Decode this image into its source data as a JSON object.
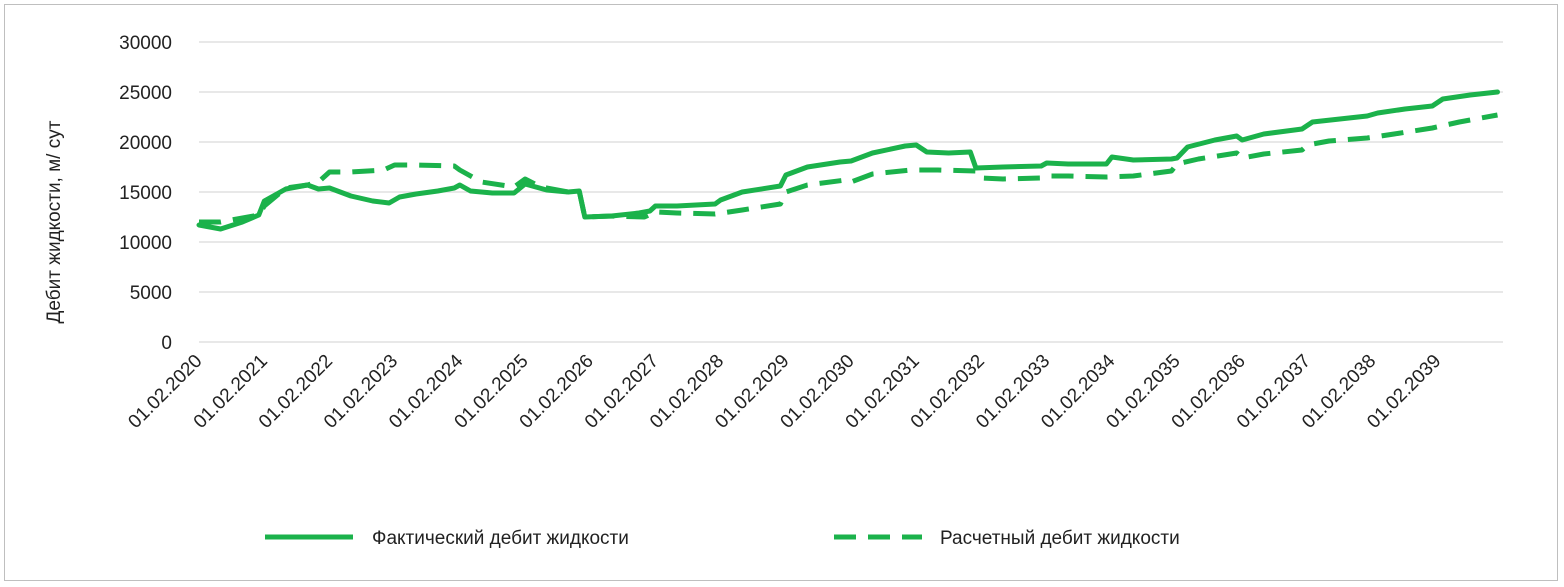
{
  "chart_data": {
    "type": "line",
    "title": "",
    "xlabel": "",
    "ylabel": "Дебит жидкости, м/ сут",
    "ylim": [
      0,
      30000
    ],
    "yticks": [
      0,
      5000,
      10000,
      15000,
      20000,
      25000,
      30000
    ],
    "xlim": [
      "01.02.2020",
      "01.02.2040"
    ],
    "xticks": [
      "01.02.2020",
      "01.02.2021",
      "01.02.2022",
      "01.02.2023",
      "01.02.2024",
      "01.02.2025",
      "01.02.2026",
      "01.02.2027",
      "01.02.2028",
      "01.02.2029",
      "01.02.2030",
      "01.02.2031",
      "01.02.2032",
      "01.02.2033",
      "01.02.2034",
      "01.02.2035",
      "01.02.2036",
      "01.02.2037",
      "01.02.2038",
      "01.02.2039"
    ],
    "grid": true,
    "legend_position": "bottom",
    "series": [
      {
        "name": "Фактический дебит жидкости",
        "style": "solid",
        "color": "#1bb24b",
        "points": [
          [
            "01.02.2020",
            11700
          ],
          [
            "01.06.2020",
            11300
          ],
          [
            "01.10.2020",
            12000
          ],
          [
            "01.01.2021",
            12700
          ],
          [
            "01.02.2021",
            14100
          ],
          [
            "01.06.2021",
            15300
          ],
          [
            "01.10.2021",
            15700
          ],
          [
            "01.12.2021",
            15300
          ],
          [
            "01.02.2022",
            15400
          ],
          [
            "01.06.2022",
            14600
          ],
          [
            "01.10.2022",
            14100
          ],
          [
            "01.01.2023",
            13900
          ],
          [
            "01.03.2023",
            14500
          ],
          [
            "01.06.2023",
            14800
          ],
          [
            "01.10.2023",
            15100
          ],
          [
            "01.01.2024",
            15400
          ],
          [
            "01.02.2024",
            15700
          ],
          [
            "01.04.2024",
            15100
          ],
          [
            "01.08.2024",
            14900
          ],
          [
            "01.12.2024",
            14900
          ],
          [
            "01.02.2025",
            15800
          ],
          [
            "01.06.2025",
            15200
          ],
          [
            "01.10.2025",
            15000
          ],
          [
            "01.12.2025",
            15100
          ],
          [
            "01.01.2026",
            12500
          ],
          [
            "01.06.2026",
            12600
          ],
          [
            "01.11.2026",
            12900
          ],
          [
            "01.01.2027",
            13100
          ],
          [
            "01.02.2027",
            13600
          ],
          [
            "01.06.2027",
            13600
          ],
          [
            "01.01.2028",
            13800
          ],
          [
            "01.02.2028",
            14200
          ],
          [
            "01.06.2028",
            15000
          ],
          [
            "01.01.2029",
            15600
          ],
          [
            "01.02.2029",
            16700
          ],
          [
            "01.06.2029",
            17500
          ],
          [
            "01.12.2029",
            18000
          ],
          [
            "01.02.2030",
            18100
          ],
          [
            "01.06.2030",
            18900
          ],
          [
            "01.12.2030",
            19600
          ],
          [
            "01.02.2031",
            19700
          ],
          [
            "01.04.2031",
            19000
          ],
          [
            "01.08.2031",
            18900
          ],
          [
            "01.12.2031",
            19000
          ],
          [
            "01.01.2032",
            17400
          ],
          [
            "01.06.2032",
            17500
          ],
          [
            "01.01.2033",
            17600
          ],
          [
            "01.02.2033",
            17900
          ],
          [
            "01.06.2033",
            17800
          ],
          [
            "01.01.2034",
            17800
          ],
          [
            "01.02.2034",
            18500
          ],
          [
            "01.06.2034",
            18200
          ],
          [
            "01.01.2035",
            18300
          ],
          [
            "01.02.2035",
            18400
          ],
          [
            "01.04.2035",
            19500
          ],
          [
            "01.09.2035",
            20200
          ],
          [
            "01.01.2036",
            20600
          ],
          [
            "01.02.2036",
            20200
          ],
          [
            "01.06.2036",
            20800
          ],
          [
            "01.01.2037",
            21300
          ],
          [
            "01.03.2037",
            22000
          ],
          [
            "01.08.2037",
            22300
          ],
          [
            "01.01.2038",
            22600
          ],
          [
            "01.03.2038",
            22900
          ],
          [
            "01.08.2038",
            23300
          ],
          [
            "01.01.2039",
            23600
          ],
          [
            "01.03.2039",
            24300
          ],
          [
            "01.08.2039",
            24700
          ],
          [
            "01.01.2040",
            25000
          ]
        ]
      },
      {
        "name": "Расчетный дебит жидкости",
        "style": "dashed",
        "color": "#1bb24b",
        "points": [
          [
            "01.02.2020",
            12000
          ],
          [
            "01.06.2020",
            12000
          ],
          [
            "01.09.2020",
            12300
          ],
          [
            "01.01.2021",
            12700
          ],
          [
            "01.02.2021",
            13600
          ],
          [
            "01.06.2021",
            15400
          ],
          [
            "01.10.2021",
            15700
          ],
          [
            "01.12.2021",
            16000
          ],
          [
            "01.02.2022",
            17000
          ],
          [
            "01.06.2022",
            17000
          ],
          [
            "01.12.2022",
            17200
          ],
          [
            "01.02.2023",
            17700
          ],
          [
            "01.06.2023",
            17700
          ],
          [
            "01.01.2024",
            17600
          ],
          [
            "01.02.2024",
            17200
          ],
          [
            "01.06.2024",
            16000
          ],
          [
            "01.12.2024",
            15500
          ],
          [
            "01.02.2025",
            16300
          ],
          [
            "01.05.2025",
            15500
          ],
          [
            "01.10.2025",
            15000
          ],
          [
            "01.12.2025",
            15100
          ],
          [
            "01.01.2026",
            12500
          ],
          [
            "01.06.2026",
            12600
          ],
          [
            "01.12.2026",
            12500
          ],
          [
            "01.02.2027",
            13000
          ],
          [
            "01.06.2027",
            12900
          ],
          [
            "01.01.2028",
            12800
          ],
          [
            "01.06.2028",
            13200
          ],
          [
            "01.01.2029",
            13800
          ],
          [
            "01.02.2029",
            15000
          ],
          [
            "01.06.2029",
            15700
          ],
          [
            "01.01.2030",
            16200
          ],
          [
            "01.02.2030",
            16000
          ],
          [
            "01.06.2030",
            16800
          ],
          [
            "01.01.2031",
            17200
          ],
          [
            "01.06.2031",
            17200
          ],
          [
            "01.01.2032",
            17100
          ],
          [
            "01.02.2032",
            16400
          ],
          [
            "01.06.2032",
            16300
          ],
          [
            "01.01.2033",
            16400
          ],
          [
            "01.02.2033",
            16600
          ],
          [
            "01.06.2033",
            16600
          ],
          [
            "01.01.2034",
            16500
          ],
          [
            "01.06.2034",
            16600
          ],
          [
            "01.01.2035",
            17100
          ],
          [
            "01.02.2035",
            17800
          ],
          [
            "01.06.2035",
            18300
          ],
          [
            "01.01.2036",
            18900
          ],
          [
            "01.02.2036",
            18400
          ],
          [
            "01.06.2036",
            18800
          ],
          [
            "01.01.2037",
            19200
          ],
          [
            "01.02.2037",
            19700
          ],
          [
            "01.06.2037",
            20100
          ],
          [
            "01.01.2038",
            20400
          ],
          [
            "01.06.2038",
            20800
          ],
          [
            "01.01.2039",
            21400
          ],
          [
            "01.06.2039",
            22000
          ],
          [
            "01.01.2040",
            22700
          ]
        ]
      }
    ]
  }
}
